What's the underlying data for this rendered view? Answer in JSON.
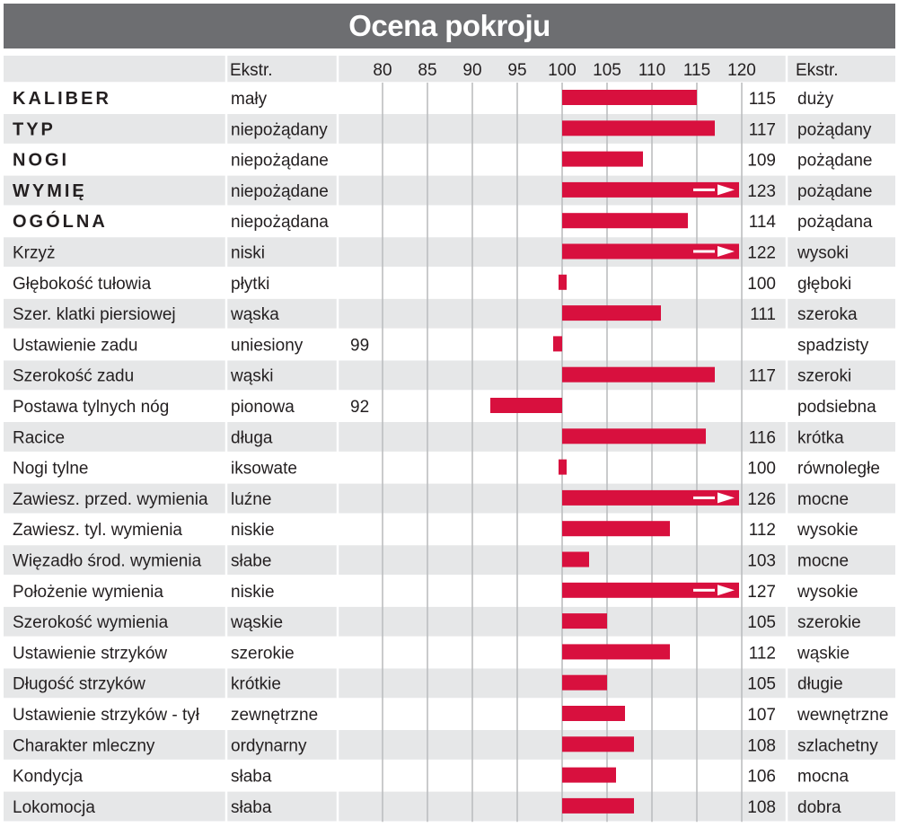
{
  "title": "Ocena pokroju",
  "columns": {
    "left_extreme_header": "Ekstr.",
    "right_extreme_header": "Ekstr."
  },
  "colors": {
    "bar": "#d8103e",
    "header_bg": "#6d6e71",
    "row_shade": "#e6e7e8",
    "gridline": "#bcbec0"
  },
  "chart_data": {
    "type": "bar",
    "orientation": "horizontal",
    "baseline": 100,
    "xlim": [
      77,
      120
    ],
    "x_ticks": [
      "80",
      "85",
      "90",
      "95",
      "100",
      "105",
      "110",
      "115",
      "120"
    ],
    "x_tick_values": [
      80,
      85,
      90,
      95,
      100,
      105,
      110,
      115,
      120
    ],
    "grid": true,
    "rows": [
      {
        "trait": "KALIBER",
        "bold": true,
        "low": "mały",
        "value": 115,
        "label": "115",
        "side": "right",
        "high": "duży",
        "overflow": false
      },
      {
        "trait": "TYP",
        "bold": true,
        "low": "niepożądany",
        "value": 117,
        "label": "117",
        "side": "right",
        "high": "pożądany",
        "overflow": false
      },
      {
        "trait": "NOGI",
        "bold": true,
        "low": "niepożądane",
        "value": 109,
        "label": "109",
        "side": "right",
        "high": "pożądane",
        "overflow": false
      },
      {
        "trait": "WYMIĘ",
        "bold": true,
        "low": "niepożądane",
        "value": 123,
        "label": "123",
        "side": "right",
        "high": "pożądane",
        "overflow": true
      },
      {
        "trait": "OGÓLNA",
        "bold": true,
        "low": "niepożądana",
        "value": 114,
        "label": "114",
        "side": "right",
        "high": "pożądana",
        "overflow": false
      },
      {
        "trait": "Krzyż",
        "bold": false,
        "low": "niski",
        "value": 122,
        "label": "122",
        "side": "right",
        "high": "wysoki",
        "overflow": true
      },
      {
        "trait": "Głębokość tułowia",
        "bold": false,
        "low": "płytki",
        "value": 100,
        "label": "100",
        "side": "right",
        "high": "głęboki",
        "overflow": false
      },
      {
        "trait": "Szer. klatki piersiowej",
        "bold": false,
        "low": "wąska",
        "value": 111,
        "label": "111",
        "side": "right",
        "high": "szeroka",
        "overflow": false
      },
      {
        "trait": "Ustawienie zadu",
        "bold": false,
        "low": "uniesiony",
        "value": 99,
        "label": "99",
        "side": "left",
        "high": "spadzisty",
        "overflow": false
      },
      {
        "trait": "Szerokość zadu",
        "bold": false,
        "low": "wąski",
        "value": 117,
        "label": "117",
        "side": "right",
        "high": "szeroki",
        "overflow": false
      },
      {
        "trait": "Postawa tylnych nóg",
        "bold": false,
        "low": "pionowa",
        "value": 92,
        "label": "92",
        "side": "left",
        "high": "podsiebna",
        "overflow": false
      },
      {
        "trait": "Racice",
        "bold": false,
        "low": "długa",
        "value": 116,
        "label": "116",
        "side": "right",
        "high": "krótka",
        "overflow": false
      },
      {
        "trait": "Nogi tylne",
        "bold": false,
        "low": "iksowate",
        "value": 100,
        "label": "100",
        "side": "right",
        "high": "równoległe",
        "overflow": false
      },
      {
        "trait": "Zawiesz. przed. wymienia",
        "bold": false,
        "low": "luźne",
        "value": 126,
        "label": "126",
        "side": "right",
        "high": "mocne",
        "overflow": true
      },
      {
        "trait": "Zawiesz. tyl. wymienia",
        "bold": false,
        "low": "niskie",
        "value": 112,
        "label": "112",
        "side": "right",
        "high": "wysokie",
        "overflow": false
      },
      {
        "trait": "Więzadło środ. wymienia",
        "bold": false,
        "low": "słabe",
        "value": 103,
        "label": "103",
        "side": "right",
        "high": "mocne",
        "overflow": false
      },
      {
        "trait": "Położenie wymienia",
        "bold": false,
        "low": "niskie",
        "value": 127,
        "label": "127",
        "side": "right",
        "high": "wysokie",
        "overflow": true
      },
      {
        "trait": "Szerokość wymienia",
        "bold": false,
        "low": "wąskie",
        "value": 105,
        "label": "105",
        "side": "right",
        "high": "szerokie",
        "overflow": false
      },
      {
        "trait": "Ustawienie strzyków",
        "bold": false,
        "low": "szerokie",
        "value": 112,
        "label": "112",
        "side": "right",
        "high": "wąskie",
        "overflow": false
      },
      {
        "trait": "Długość strzyków",
        "bold": false,
        "low": "krótkie",
        "value": 105,
        "label": "105",
        "side": "right",
        "high": "długie",
        "overflow": false
      },
      {
        "trait": "Ustawienie strzyków - tył",
        "bold": false,
        "low": "zewnętrzne",
        "value": 107,
        "label": "107",
        "side": "right",
        "high": "wewnętrzne",
        "overflow": false
      },
      {
        "trait": "Charakter mleczny",
        "bold": false,
        "low": "ordynarny",
        "value": 108,
        "label": "108",
        "side": "right",
        "high": "szlachetny",
        "overflow": false
      },
      {
        "trait": "Kondycja",
        "bold": false,
        "low": "słaba",
        "value": 106,
        "label": "106",
        "side": "right",
        "high": "mocna",
        "overflow": false
      },
      {
        "trait": "Lokomocja",
        "bold": false,
        "low": "słaba",
        "value": 108,
        "label": "108",
        "side": "right",
        "high": "dobra",
        "overflow": false
      }
    ]
  }
}
